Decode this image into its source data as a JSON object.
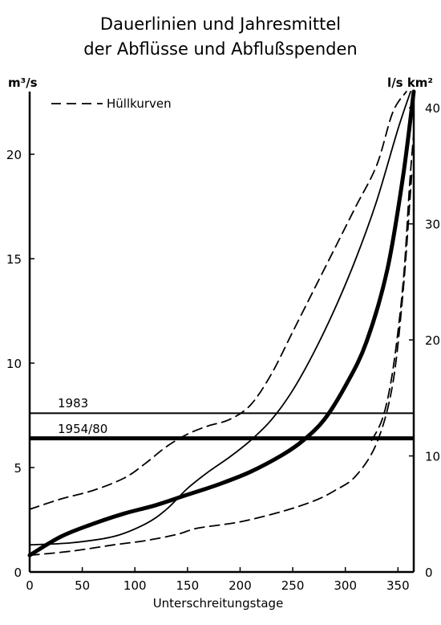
{
  "chart_data": {
    "type": "line",
    "title": "Dauerlinien und Jahresmittel",
    "subtitle": "der Abflüsse und Abflußspenden",
    "xlabel": "Unterschreitungstage",
    "ylabel_left": "m³/s",
    "ylabel_right": "l/s km²",
    "xlim": [
      0,
      365
    ],
    "ylim_left": [
      0,
      23
    ],
    "ylim_right": [
      0,
      41.4
    ],
    "x_ticks": [
      0,
      50,
      100,
      150,
      200,
      250,
      300,
      350
    ],
    "y_ticks_left": [
      0,
      5,
      10,
      15,
      20
    ],
    "y_ticks_right": [
      0,
      10,
      20,
      30,
      40
    ],
    "x_tick_labels": [
      "0",
      "50",
      "100",
      "150",
      "200",
      "250",
      "300",
      "350"
    ],
    "y_tick_labels_left": [
      "0",
      "5",
      "10",
      "15",
      "20"
    ],
    "y_tick_labels_right": [
      "0",
      "10",
      "20",
      "30",
      "40"
    ],
    "legend": {
      "label": "Hüllkurven",
      "style": "dashed",
      "position": "top-left"
    },
    "means": [
      {
        "label": "1983",
        "value": 7.6,
        "style": "thin"
      },
      {
        "label": "1954/80",
        "value": 6.4,
        "style": "bold"
      }
    ],
    "series": [
      {
        "style": "dashed",
        "x": [
          0,
          30,
          60,
          90,
          110,
          130,
          150,
          170,
          190,
          210,
          230,
          250,
          270,
          290,
          310,
          330,
          345,
          358
        ],
        "y": [
          3.0,
          3.5,
          3.9,
          4.5,
          5.2,
          6.0,
          6.6,
          7.0,
          7.3,
          8.0,
          9.5,
          11.5,
          13.5,
          15.5,
          17.5,
          19.5,
          22.0,
          23.0
        ]
      },
      {
        "style": "thin",
        "x": [
          0,
          40,
          80,
          110,
          130,
          150,
          170,
          190,
          210,
          230,
          250,
          270,
          290,
          310,
          330,
          350,
          362
        ],
        "y": [
          1.3,
          1.4,
          1.7,
          2.3,
          3.0,
          4.0,
          4.8,
          5.5,
          6.3,
          7.3,
          8.7,
          10.5,
          12.6,
          15.0,
          17.8,
          21.2,
          23.0
        ]
      },
      {
        "style": "bold",
        "x": [
          0,
          30,
          60,
          90,
          120,
          150,
          180,
          210,
          240,
          260,
          280,
          300,
          320,
          340,
          355,
          365
        ],
        "y": [
          0.8,
          1.7,
          2.3,
          2.8,
          3.2,
          3.7,
          4.2,
          4.8,
          5.6,
          6.3,
          7.3,
          8.9,
          11.0,
          14.5,
          19.0,
          23.0
        ]
      },
      {
        "style": "dashed",
        "x": [
          0,
          40,
          80,
          110,
          140,
          160,
          200,
          240,
          270,
          290,
          310,
          330,
          345,
          355,
          363
        ],
        "y": [
          0.8,
          1.0,
          1.3,
          1.5,
          1.8,
          2.1,
          2.4,
          2.9,
          3.4,
          3.9,
          4.6,
          6.2,
          9.0,
          13.5,
          19.0
        ]
      },
      {
        "style": "dashed",
        "x": [
          325,
          335,
          343,
          350,
          356,
          361,
          365
        ],
        "y": [
          6.3,
          7.3,
          9.0,
          11.5,
          14.5,
          18.5,
          21.0
        ]
      }
    ]
  }
}
